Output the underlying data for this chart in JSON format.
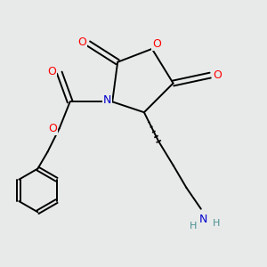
{
  "bg_color": "#e8eaea",
  "atom_colors": {
    "O": "#ff0000",
    "N": "#0000cc",
    "NH2_N": "#0000cc",
    "NH2_H": "#4a9090",
    "C": "#000000"
  },
  "line_color": "#000000",
  "line_width": 1.4
}
